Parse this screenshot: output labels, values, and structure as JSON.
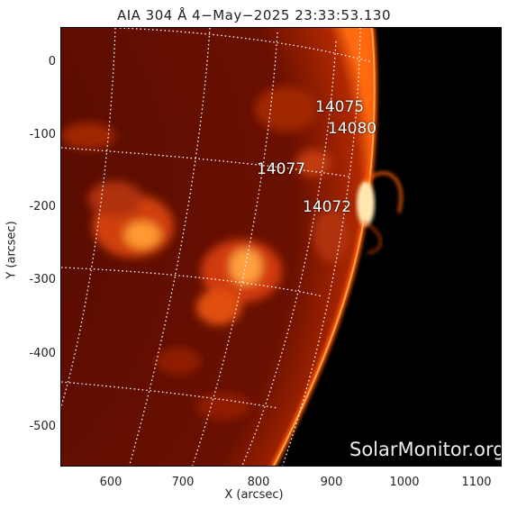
{
  "title": "AIA 304 Å  4−May−2025 23:33:53.130",
  "axes": {
    "xlabel": "X (arcsec)",
    "ylabel": "Y (arcsec)",
    "x_ticks": [
      "600",
      "700",
      "800",
      "900",
      "1000",
      "1100"
    ],
    "y_ticks": [
      "0",
      "-100",
      "-200",
      "-300",
      "-400",
      "-500"
    ]
  },
  "regions": [
    {
      "label": "14075"
    },
    {
      "label": "14080"
    },
    {
      "label": "14077"
    },
    {
      "label": "14072"
    }
  ],
  "watermark": "SolarMonitor.org",
  "colors": {
    "disk": "#8a1a00",
    "bright": "#ffb040",
    "background": "#000000",
    "grid": "#ffffff"
  }
}
